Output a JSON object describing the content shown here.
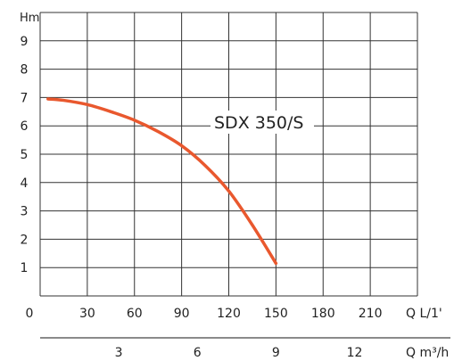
{
  "chart_data": {
    "type": "line",
    "title": "",
    "ylabel": "Hm",
    "xlabel_primary": "Q L/1'",
    "xlabel_secondary": "Q m³/h",
    "y_ticks": [
      "1",
      "2",
      "3",
      "4",
      "5",
      "6",
      "7",
      "8",
      "9"
    ],
    "x_ticks_primary": [
      "0",
      "30",
      "60",
      "90",
      "120",
      "150",
      "180",
      "210"
    ],
    "x_ticks_secondary": [
      "3",
      "6",
      "9",
      "12"
    ],
    "ylim": [
      0,
      10
    ],
    "xlim": [
      0,
      240
    ],
    "grid": true,
    "series": [
      {
        "name": "SDX 350/S",
        "color": "#e9582e",
        "x": [
          5,
          15,
          30,
          45,
          60,
          75,
          90,
          105,
          120,
          135,
          150
        ],
        "y": [
          6.95,
          6.9,
          6.75,
          6.5,
          6.2,
          5.8,
          5.3,
          4.6,
          3.7,
          2.5,
          1.15
        ]
      }
    ]
  }
}
